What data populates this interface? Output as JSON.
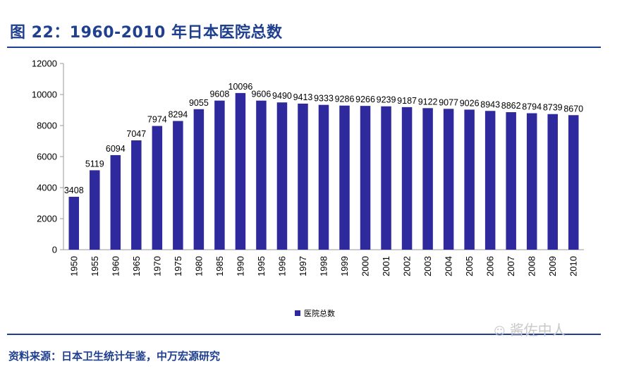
{
  "figure": {
    "title": "图 22：1960-2010 年日本医院总数",
    "source": "资料来源：日本卫生统计年鉴，中万宏源研究",
    "watermark": "酱佐中人"
  },
  "colors": {
    "bar": "#2e2a9e",
    "title": "#1f3f8f",
    "axis": "#9a9a9a"
  },
  "chart_data": {
    "type": "bar",
    "title": "",
    "xlabel": "",
    "ylabel": "",
    "ylim": [
      0,
      12000
    ],
    "yticks": [
      0,
      2000,
      4000,
      6000,
      8000,
      10000,
      12000
    ],
    "categories": [
      "1950",
      "1955",
      "1960",
      "1965",
      "1970",
      "1975",
      "1980",
      "1985",
      "1990",
      "1995",
      "1996",
      "1997",
      "1998",
      "1999",
      "2000",
      "2001",
      "2002",
      "2003",
      "2004",
      "2005",
      "2006",
      "2007",
      "2008",
      "2009",
      "2010"
    ],
    "series": [
      {
        "name": "医院总数",
        "values": [
          3408,
          5119,
          6094,
          7047,
          7974,
          8294,
          9055,
          9608,
          10096,
          9606,
          9490,
          9413,
          9333,
          9286,
          9266,
          9239,
          9187,
          9122,
          9077,
          9026,
          8943,
          8862,
          8794,
          8739,
          8670
        ]
      }
    ],
    "grid": false,
    "legend": "bottom-center"
  }
}
